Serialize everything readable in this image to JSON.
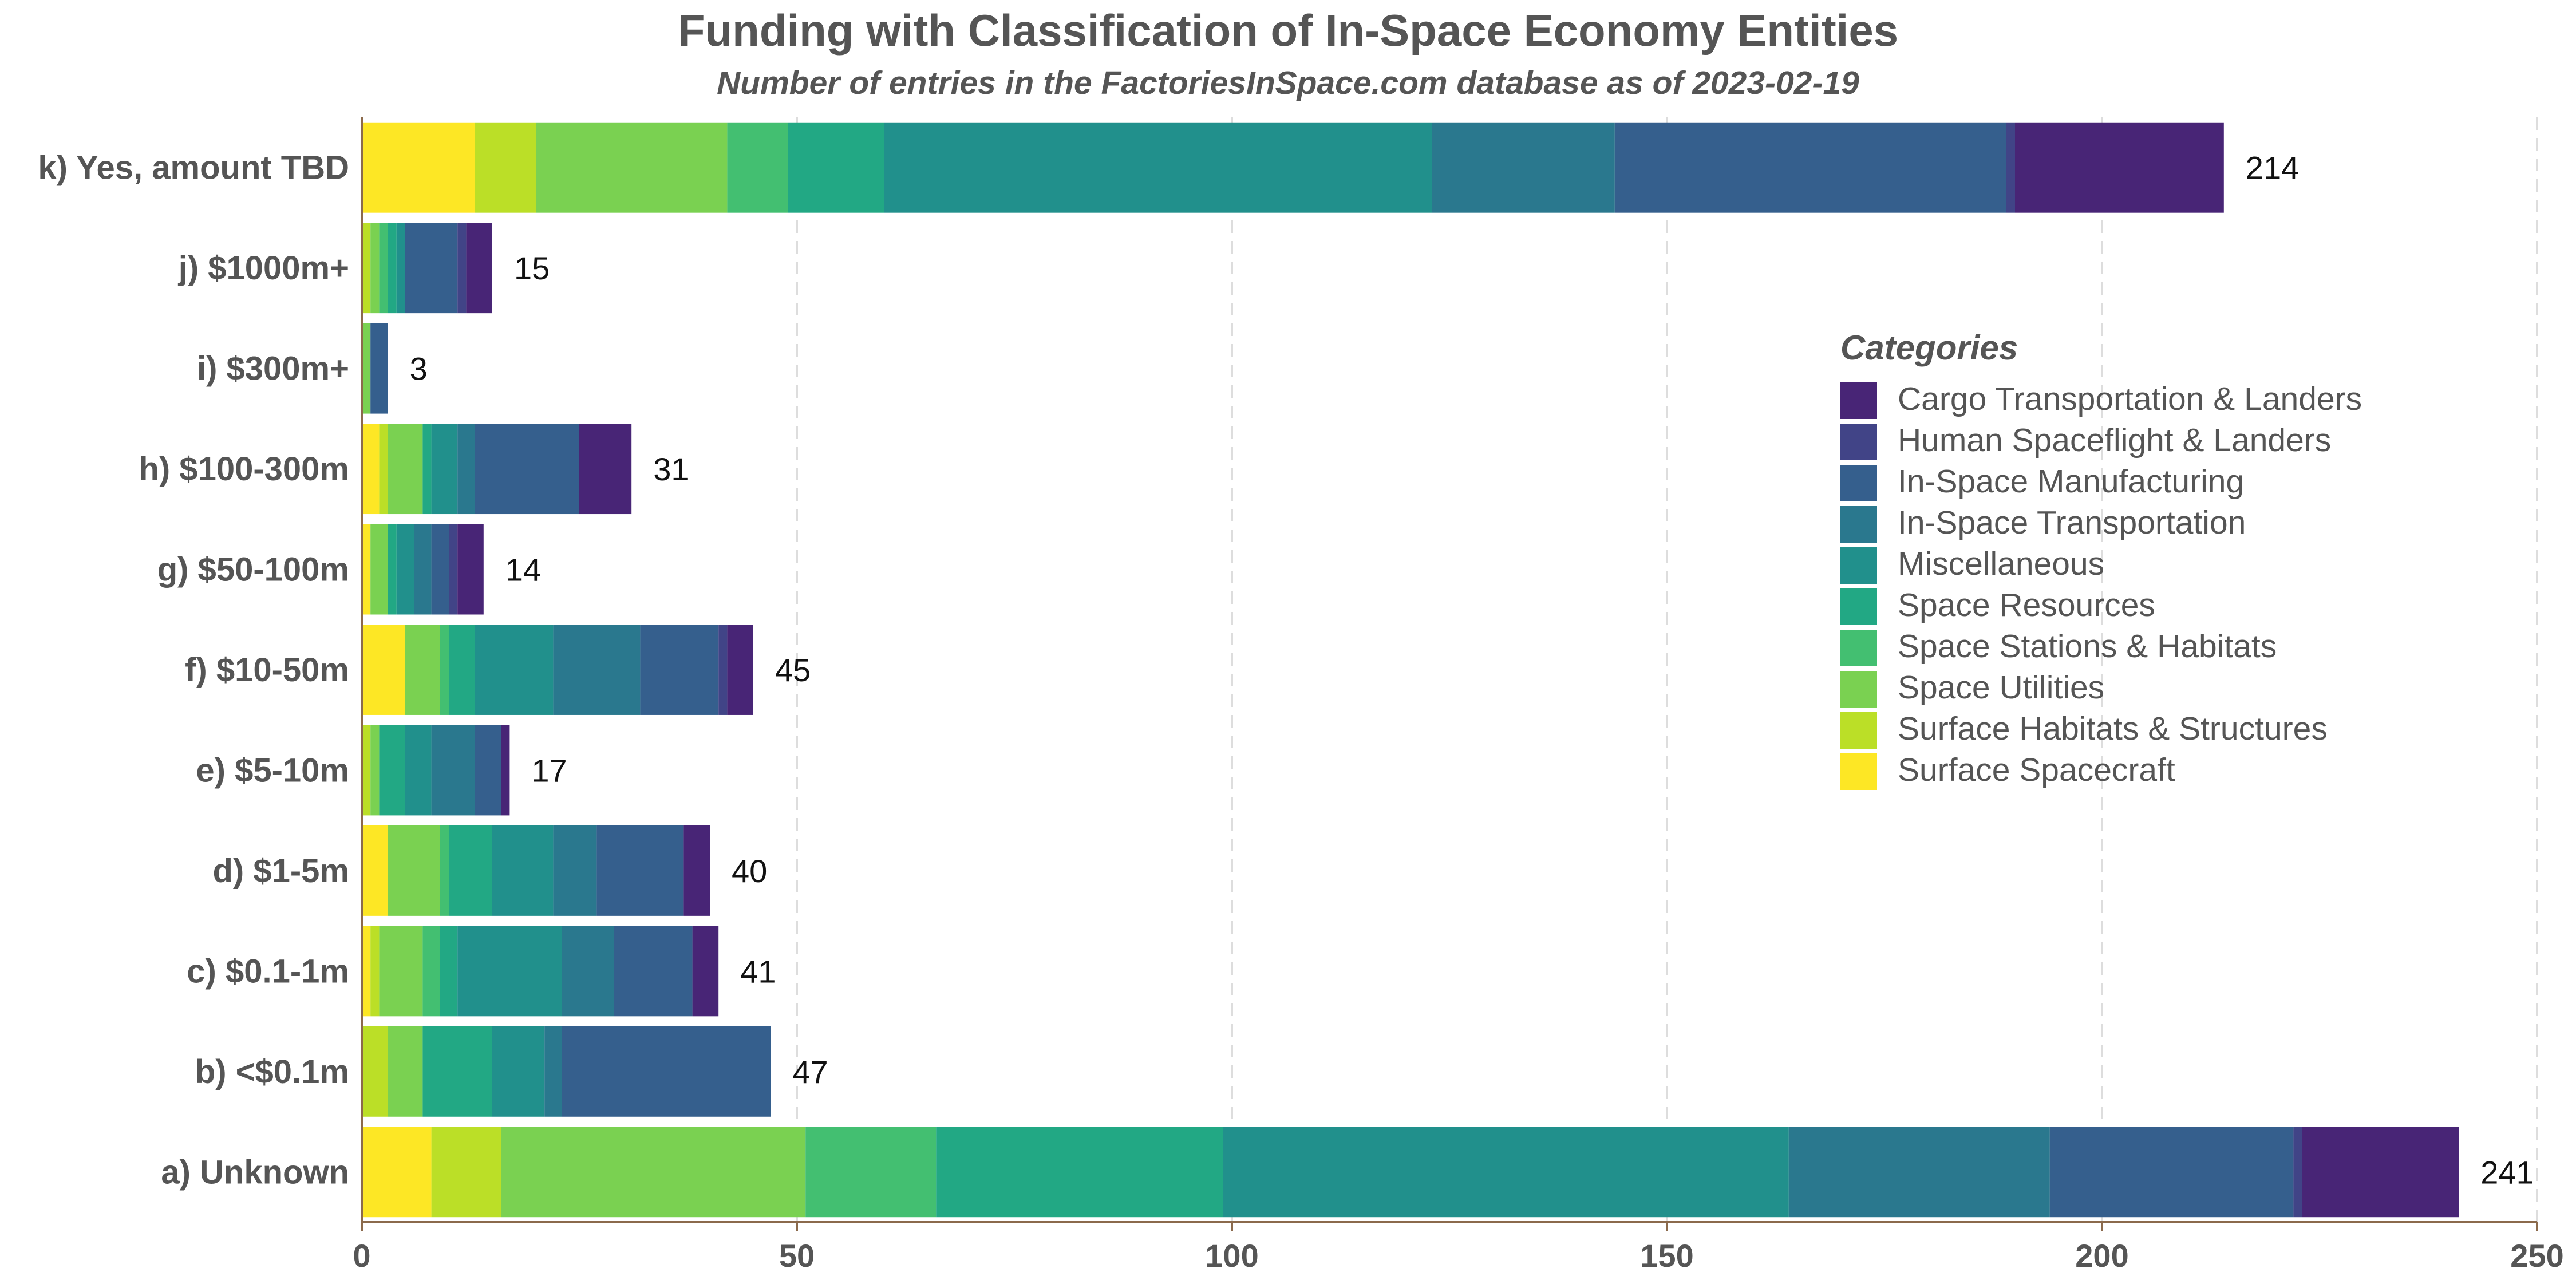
{
  "chart_data": {
    "type": "bar",
    "orientation": "horizontal",
    "stacked": true,
    "title": "Funding with Classification of In-Space Economy Entities",
    "subtitle": "Number of entries in the FactoriesInSpace.com database as of 2023-02-19",
    "xlabel": "",
    "ylabel": "",
    "xlim": [
      0,
      250
    ],
    "xticks": [
      0,
      50,
      100,
      150,
      200,
      250
    ],
    "grid": "vertical dashed",
    "legend_title": "Categories",
    "legend_position": "right",
    "categories": [
      "k) Yes, amount TBD",
      "j)  $1000m+",
      "i)  $300m+",
      "h)  $100-300m",
      "g)  $50-100m",
      "f)  $10-50m",
      "e)  $5-10m",
      "d)  $1-5m",
      "c)  $0.1-1m",
      "b)  <$0.1m",
      "a) Unknown"
    ],
    "totals": [
      214,
      15,
      3,
      31,
      14,
      45,
      17,
      40,
      41,
      47,
      241
    ],
    "series": [
      {
        "name": "Surface Spacecraft",
        "color": "#FDE725",
        "values": [
          13,
          0,
          0,
          2,
          1,
          5,
          0,
          3,
          1,
          0,
          8
        ]
      },
      {
        "name": "Surface Habitats & Structures",
        "color": "#BBDF27",
        "values": [
          7,
          1,
          0,
          1,
          0,
          0,
          1,
          0,
          1,
          3,
          8
        ]
      },
      {
        "name": "Space Utilities",
        "color": "#7AD151",
        "values": [
          22,
          1,
          1,
          4,
          2,
          4,
          1,
          6,
          5,
          4,
          35
        ]
      },
      {
        "name": "Space Stations & Habitats",
        "color": "#43BF71",
        "values": [
          7,
          1,
          0,
          0,
          0,
          1,
          0,
          1,
          2,
          0,
          15
        ]
      },
      {
        "name": "Space Resources",
        "color": "#22A884",
        "values": [
          11,
          1,
          0,
          1,
          1,
          3,
          3,
          5,
          2,
          8,
          33
        ]
      },
      {
        "name": "Miscellaneous",
        "color": "#21908C",
        "values": [
          63,
          1,
          0,
          3,
          2,
          9,
          3,
          7,
          12,
          6,
          65
        ]
      },
      {
        "name": "In-Space Transportation",
        "color": "#2A788E",
        "values": [
          21,
          0,
          0,
          2,
          2,
          10,
          5,
          5,
          6,
          2,
          30
        ]
      },
      {
        "name": "In-Space Manufacturing",
        "color": "#355F8D",
        "values": [
          45,
          6,
          2,
          12,
          2,
          9,
          3,
          10,
          9,
          24,
          28
        ]
      },
      {
        "name": "Human Spaceflight & Landers",
        "color": "#414487",
        "values": [
          1,
          1,
          0,
          0,
          1,
          1,
          0,
          0,
          0,
          0,
          1
        ]
      },
      {
        "name": "Cargo Transportation & Landers",
        "color": "#482576",
        "values": [
          24,
          3,
          0,
          6,
          3,
          3,
          1,
          3,
          3,
          0,
          18
        ]
      }
    ]
  }
}
